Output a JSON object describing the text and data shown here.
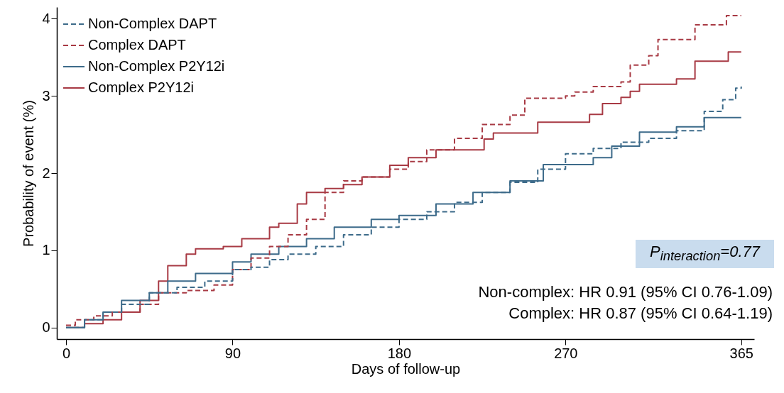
{
  "chart_data": {
    "type": "step",
    "xlabel": "Days of follow-up",
    "ylabel": "Probability of event (%)",
    "xlim": [
      -5,
      372
    ],
    "ylim": [
      -0.15,
      4.15
    ],
    "xticks": [
      0,
      90,
      180,
      270,
      365
    ],
    "yticks": [
      0,
      1,
      2,
      3,
      4
    ],
    "grid": false,
    "legend": "top left",
    "annotations": [
      "P$_{interaction}$=0.77",
      "Non-complex: HR 0.91 (95% CI 0.76-1.09)",
      "Complex: HR 0.87 (95% CI 0.64-1.19)"
    ],
    "series": [
      {
        "name": "Non-Complex DAPT",
        "color": "#3d6b8a",
        "line_style": "dashed",
        "x": [
          0,
          10,
          20,
          30,
          45,
          60,
          75,
          90,
          100,
          110,
          120,
          135,
          150,
          165,
          180,
          195,
          210,
          225,
          240,
          255,
          270,
          285,
          300,
          315,
          330,
          345,
          355,
          362,
          365
        ],
        "values": [
          0,
          0.1,
          0.2,
          0.3,
          0.45,
          0.52,
          0.6,
          0.75,
          0.78,
          0.88,
          0.95,
          1.05,
          1.2,
          1.3,
          1.4,
          1.5,
          1.62,
          1.75,
          1.88,
          2.05,
          2.25,
          2.32,
          2.4,
          2.45,
          2.55,
          2.8,
          2.95,
          3.1,
          3.12
        ]
      },
      {
        "name": "Complex DAPT",
        "color": "#a83a44",
        "line_style": "dashed",
        "x": [
          0,
          5,
          15,
          25,
          40,
          50,
          65,
          80,
          90,
          100,
          110,
          120,
          130,
          140,
          150,
          160,
          175,
          185,
          195,
          210,
          225,
          240,
          248,
          270,
          275,
          285,
          300,
          305,
          315,
          320,
          340,
          357,
          365
        ],
        "values": [
          0.03,
          0.1,
          0.15,
          0.2,
          0.3,
          0.45,
          0.48,
          0.55,
          0.75,
          0.9,
          1.05,
          1.2,
          1.4,
          1.75,
          1.9,
          1.95,
          2.05,
          2.15,
          2.3,
          2.45,
          2.63,
          2.75,
          2.97,
          3.0,
          3.05,
          3.12,
          3.18,
          3.4,
          3.52,
          3.73,
          3.92,
          4.04,
          4.04
        ]
      },
      {
        "name": "Non-Complex P2Y12i",
        "color": "#3d6b8a",
        "line_style": "solid",
        "x": [
          0,
          10,
          20,
          30,
          45,
          55,
          70,
          90,
          100,
          115,
          130,
          145,
          165,
          180,
          200,
          220,
          240,
          258,
          280,
          285,
          295,
          310,
          330,
          345,
          365
        ],
        "values": [
          0,
          0.1,
          0.2,
          0.35,
          0.45,
          0.6,
          0.7,
          0.85,
          0.95,
          1.05,
          1.15,
          1.3,
          1.4,
          1.45,
          1.6,
          1.75,
          1.9,
          2.11,
          2.11,
          2.2,
          2.35,
          2.53,
          2.6,
          2.72,
          2.72
        ]
      },
      {
        "name": "Complex P2Y12i",
        "color": "#a83a44",
        "line_style": "solid",
        "x": [
          0,
          10,
          20,
          30,
          40,
          50,
          55,
          65,
          70,
          85,
          95,
          110,
          115,
          125,
          130,
          140,
          150,
          160,
          175,
          185,
          200,
          226,
          231,
          255,
          283,
          290,
          300,
          305,
          310,
          330,
          340,
          358,
          365
        ],
        "values": [
          0,
          0.05,
          0.1,
          0.2,
          0.35,
          0.6,
          0.8,
          0.95,
          1.02,
          1.05,
          1.15,
          1.3,
          1.35,
          1.6,
          1.75,
          1.8,
          1.85,
          1.95,
          2.1,
          2.2,
          2.3,
          2.44,
          2.52,
          2.66,
          2.76,
          2.9,
          2.98,
          3.06,
          3.15,
          3.22,
          3.45,
          3.57,
          3.57
        ]
      }
    ]
  }
}
